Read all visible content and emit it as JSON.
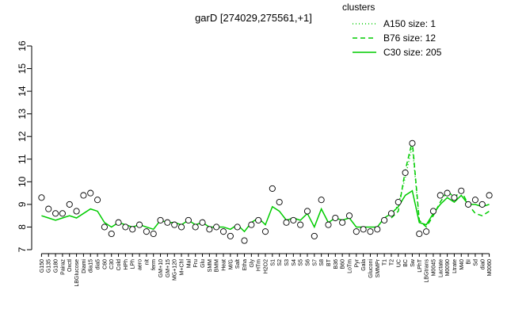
{
  "chart_data": {
    "type": "line",
    "title": "garD [274029,275561,+1]",
    "legend_title": "clusters",
    "categories": [
      "G150",
      "G135",
      "G180",
      "Pairaz",
      "Oxctl",
      "LBGIucose",
      "Diami",
      "dia15",
      "dia5",
      "C60",
      "C30",
      "Cold",
      "HPh",
      "LPh",
      "aero",
      "nit",
      "ferm",
      "GM+10",
      "GM+15",
      "MG+120",
      "M+Chl",
      "Mal",
      "Fru",
      "Glu",
      "SMM",
      "BMM",
      "Heat",
      "M/G",
      "Salt",
      "Etha",
      "Gly",
      "HTm",
      "H2O2",
      "S1",
      "S2",
      "S3",
      "S4",
      "S5",
      "S6",
      "S7",
      "S8",
      "BT",
      "B36",
      "B60",
      "LoTm",
      "Pyr",
      "Gala",
      "Gluconi",
      "SMMPr",
      "T1",
      "T2",
      "UC",
      "BC",
      "Sw",
      "LPhT",
      "LBGtrans",
      "M0045",
      "Lactate",
      "M0090",
      "Ltrate",
      "M40",
      "BI",
      "Sd",
      "dia0",
      "M0060"
    ],
    "points": {
      "color": "#000000",
      "values": [
        9.3,
        8.8,
        8.6,
        8.6,
        9.0,
        8.7,
        9.4,
        9.5,
        9.2,
        8.0,
        7.7,
        8.2,
        8.0,
        7.9,
        8.1,
        7.8,
        7.7,
        8.3,
        8.2,
        8.1,
        8.0,
        8.3,
        8.0,
        8.2,
        7.9,
        8.0,
        7.8,
        7.6,
        8.0,
        7.4,
        8.1,
        8.3,
        7.8,
        9.7,
        9.1,
        8.2,
        8.3,
        8.1,
        8.7,
        7.6,
        9.2,
        8.1,
        8.4,
        8.2,
        8.5,
        7.8,
        7.9,
        7.8,
        7.9,
        8.3,
        8.6,
        9.1,
        10.4,
        11.7,
        7.7,
        7.8,
        8.7,
        9.4,
        9.5,
        9.3,
        9.6,
        9.0,
        9.2,
        9.0,
        9.4
      ]
    },
    "series": [
      {
        "name": "A150 size: 1",
        "color": "#00cc00",
        "dash": "1,3",
        "values": [
          null,
          null,
          null,
          null,
          null,
          null,
          null,
          null,
          null,
          null,
          null,
          null,
          null,
          null,
          null,
          null,
          null,
          null,
          null,
          null,
          null,
          null,
          null,
          null,
          null,
          null,
          null,
          null,
          null,
          null,
          null,
          null,
          null,
          null,
          null,
          null,
          null,
          null,
          null,
          null,
          null,
          null,
          null,
          null,
          null,
          null,
          null,
          null,
          null,
          null,
          8.5,
          9.0,
          10.2,
          11.6,
          8.2,
          null,
          null,
          null,
          null,
          null,
          null,
          null,
          null,
          null,
          null
        ]
      },
      {
        "name": "B76 size: 12",
        "color": "#00cc00",
        "dash": "6,4",
        "values": [
          null,
          null,
          null,
          null,
          null,
          null,
          null,
          null,
          null,
          null,
          null,
          null,
          null,
          null,
          null,
          null,
          null,
          null,
          null,
          null,
          null,
          null,
          null,
          null,
          null,
          null,
          null,
          null,
          null,
          null,
          null,
          null,
          null,
          null,
          null,
          null,
          null,
          null,
          null,
          null,
          null,
          null,
          null,
          null,
          null,
          null,
          null,
          null,
          null,
          null,
          8.4,
          8.7,
          10.5,
          11.8,
          8.3,
          8.0,
          8.5,
          9.1,
          9.6,
          9.3,
          9.6,
          9.0,
          8.6,
          8.5,
          8.7
        ]
      },
      {
        "name": "C30 size: 205",
        "color": "#00cc00",
        "dash": "none",
        "values": [
          8.5,
          8.4,
          8.3,
          8.4,
          8.5,
          8.4,
          8.6,
          8.8,
          8.7,
          8.2,
          8.0,
          8.2,
          8.1,
          8.0,
          8.1,
          8.0,
          7.9,
          8.3,
          8.2,
          8.2,
          8.1,
          8.3,
          8.1,
          8.2,
          8.0,
          8.0,
          8.0,
          7.9,
          8.1,
          7.8,
          8.2,
          8.4,
          8.1,
          8.9,
          8.7,
          8.3,
          8.4,
          8.3,
          8.6,
          8.0,
          8.8,
          8.2,
          8.4,
          8.3,
          8.4,
          8.0,
          8.0,
          8.0,
          8.0,
          8.4,
          8.6,
          8.9,
          9.4,
          9.6,
          8.2,
          8.1,
          8.6,
          9.0,
          9.3,
          9.1,
          9.4,
          9.0,
          9.0,
          8.9,
          9.0
        ]
      }
    ],
    "ylim": [
      7,
      16
    ],
    "yticks": [
      7,
      8,
      9,
      10,
      11,
      12,
      13,
      14,
      15,
      16
    ],
    "legend": "top-right"
  }
}
